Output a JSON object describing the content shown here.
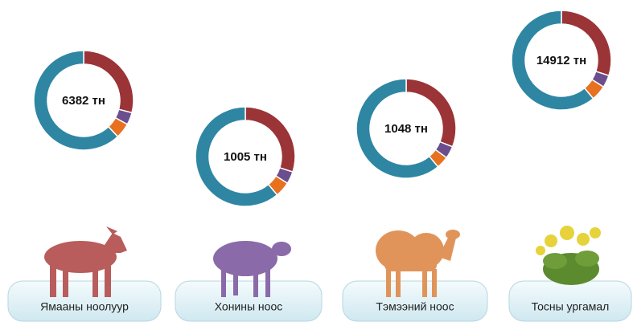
{
  "chart_data": [
    {
      "type": "donut",
      "title": "Ямааны ноолуур",
      "center_label": "6382 тн",
      "values": [
        29,
        4,
        5,
        62
      ],
      "colors": [
        "#9b3437",
        "#6b4e8e",
        "#e8711f",
        "#2e86a3"
      ]
    },
    {
      "type": "donut",
      "title": "Хонины ноос",
      "center_label": "1005 тн",
      "values": [
        30,
        4,
        5,
        61
      ],
      "colors": [
        "#9b3437",
        "#6b4e8e",
        "#e8711f",
        "#2e86a3"
      ]
    },
    {
      "type": "donut",
      "title": "Тэмээний ноос",
      "center_label": "1048 тн",
      "values": [
        31,
        4,
        4,
        61
      ],
      "colors": [
        "#9b3437",
        "#6b4e8e",
        "#e8711f",
        "#2e86a3"
      ]
    },
    {
      "type": "donut",
      "title": "Тосны ургамал",
      "center_label": "14912 тн",
      "values": [
        30,
        4,
        5,
        61
      ],
      "colors": [
        "#9b3437",
        "#6b4e8e",
        "#e8711f",
        "#2e86a3"
      ]
    }
  ]
}
